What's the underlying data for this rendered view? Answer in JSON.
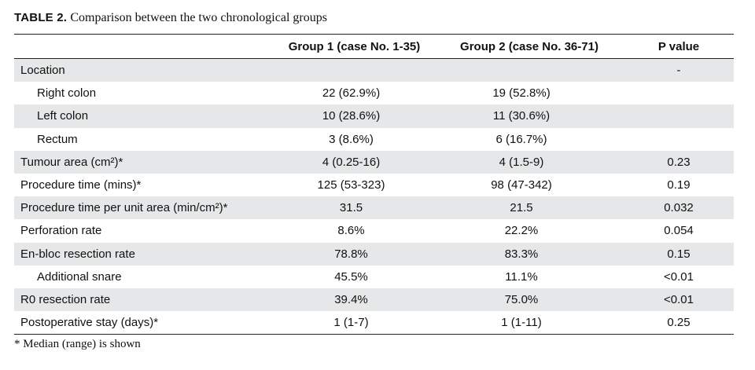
{
  "caption": {
    "label": "TABLE 2.",
    "text": "Comparison between the two chronological groups"
  },
  "table": {
    "headers": [
      "",
      "Group 1 (case No. 1-35)",
      "Group 2 (case No. 36-71)",
      "P value"
    ],
    "rows": [
      {
        "label": "Location",
        "indent": false,
        "g1": "",
        "g2": "",
        "p": "-"
      },
      {
        "label": "Right colon",
        "indent": true,
        "g1": "22 (62.9%)",
        "g2": "19 (52.8%)",
        "p": ""
      },
      {
        "label": "Left colon",
        "indent": true,
        "g1": "10 (28.6%)",
        "g2": "11 (30.6%)",
        "p": ""
      },
      {
        "label": "Rectum",
        "indent": true,
        "g1": "3 (8.6%)",
        "g2": "6 (16.7%)",
        "p": ""
      },
      {
        "label": "Tumour area (cm²)*",
        "indent": false,
        "g1": "4 (0.25-16)",
        "g2": "4 (1.5-9)",
        "p": "0.23"
      },
      {
        "label": "Procedure time (mins)*",
        "indent": false,
        "g1": "125 (53-323)",
        "g2": "98 (47-342)",
        "p": "0.19"
      },
      {
        "label": "Procedure time per unit area (min/cm²)*",
        "indent": false,
        "g1": "31.5",
        "g2": "21.5",
        "p": "0.032"
      },
      {
        "label": "Perforation rate",
        "indent": false,
        "g1": "8.6%",
        "g2": "22.2%",
        "p": "0.054"
      },
      {
        "label": "En-bloc resection rate",
        "indent": false,
        "g1": "78.8%",
        "g2": "83.3%",
        "p": "0.15"
      },
      {
        "label": "Additional snare",
        "indent": true,
        "g1": "45.5%",
        "g2": "11.1%",
        "p": "<0.01"
      },
      {
        "label": "R0 resection rate",
        "indent": false,
        "g1": "39.4%",
        "g2": "75.0%",
        "p": "<0.01"
      },
      {
        "label": "Postoperative stay (days)*",
        "indent": false,
        "g1": "1 (1-7)",
        "g2": "1 (1-11)",
        "p": "0.25"
      }
    ]
  },
  "footnote": "*  Median (range) is shown"
}
